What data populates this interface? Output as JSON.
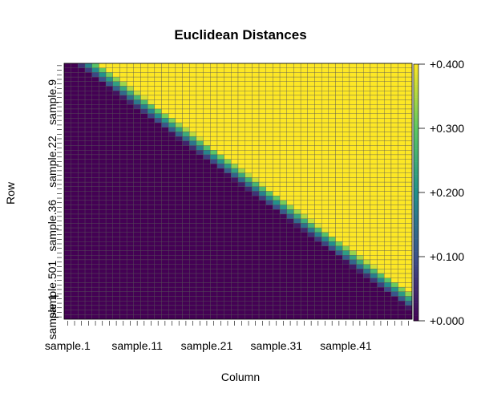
{
  "chart_data": {
    "type": "heatmap",
    "title": "Euclidean Distances",
    "xlabel": "Column",
    "ylabel": "Row",
    "n_rows": 56,
    "n_cols": 50,
    "x_tick_labels": [
      {
        "label": "sample.1",
        "index": 1
      },
      {
        "label": "sample.11",
        "index": 11
      },
      {
        "label": "sample.21",
        "index": 21
      },
      {
        "label": "sample.31",
        "index": 31
      },
      {
        "label": "sample.41",
        "index": 41
      }
    ],
    "y_tick_labels": [
      {
        "label": "sample.9",
        "index": 9
      },
      {
        "label": "sample.22",
        "index": 22
      },
      {
        "label": "sample.36",
        "index": 36
      },
      {
        "label": "sample.501",
        "index": 50
      },
      {
        "label": "sample.1",
        "index": 56
      }
    ],
    "value_range": [
      0.0,
      0.4
    ],
    "colorbar": {
      "ticks": [
        {
          "value": 0.0,
          "label": "+0.000"
        },
        {
          "value": 0.1,
          "label": "+0.100"
        },
        {
          "value": 0.2,
          "label": "+0.200"
        },
        {
          "value": 0.3,
          "label": "+0.300"
        },
        {
          "value": 0.4,
          "label": "+0.400"
        }
      ],
      "stops": [
        {
          "value": 0.0,
          "color": "#440154"
        },
        {
          "value": 0.1,
          "color": "#3b528b"
        },
        {
          "value": 0.2,
          "color": "#21908c"
        },
        {
          "value": 0.3,
          "color": "#5dc863"
        },
        {
          "value": 0.4,
          "color": "#fde725"
        }
      ]
    },
    "pattern": {
      "description_values": "low values below diagonal band, high values above",
      "band_width_cols": 3.5,
      "low_value": 0.0,
      "high_value": 0.4
    },
    "cell_border_color": "#555555",
    "legend_position": "right"
  }
}
